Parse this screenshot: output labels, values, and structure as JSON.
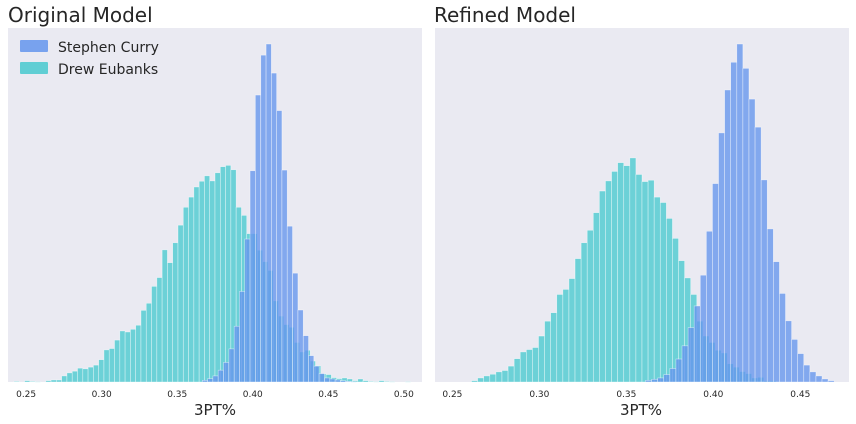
{
  "colors": {
    "background": "#EAEAF2",
    "curry": "#6495ED",
    "eubanks": "#48C9CF"
  },
  "legend": {
    "placement": "top-left",
    "entries": [
      "Stephen Curry",
      "Drew Eubanks"
    ]
  },
  "chart_data": [
    {
      "type": "bar",
      "title": "Original Model",
      "xlabel": "3PT%",
      "ylabel": "",
      "xlim": [
        0.238,
        0.512
      ],
      "ylim": [
        0,
        1
      ],
      "xticks": [
        0.25,
        0.3,
        0.35,
        0.4,
        0.45,
        0.5
      ],
      "xtick_labels": [
        "0.25",
        "0.30",
        "0.35",
        "0.40",
        "0.45",
        "0.50"
      ],
      "y_axis_visible": false,
      "grid": false,
      "series": [
        {
          "name": "Stephen Curry",
          "x": [
            0.3666,
            0.3701,
            0.3736,
            0.3771,
            0.3806,
            0.3842,
            0.3877,
            0.3912,
            0.3947,
            0.3982,
            0.4017,
            0.4053,
            0.4088,
            0.4123,
            0.4158,
            0.4193,
            0.4228,
            0.4264,
            0.4299,
            0.4334,
            0.4369,
            0.4404,
            0.4439,
            0.4475,
            0.451,
            0.4545,
            0.458,
            0.4615,
            0.465
          ],
          "values": [
            0.005,
            0.01,
            0.018,
            0.035,
            0.058,
            0.098,
            0.165,
            0.268,
            0.423,
            0.625,
            0.849,
            0.967,
            1.0,
            0.914,
            0.803,
            0.627,
            0.461,
            0.322,
            0.213,
            0.137,
            0.078,
            0.047,
            0.025,
            0.012,
            0.009,
            0.006,
            0.004,
            0.002,
            0.001
          ]
        },
        {
          "name": "Drew Eubanks",
          "x": [
            0.242,
            0.2455,
            0.249,
            0.2525,
            0.256,
            0.2595,
            0.263,
            0.2665,
            0.27,
            0.2735,
            0.277,
            0.2805,
            0.284,
            0.2875,
            0.291,
            0.2945,
            0.298,
            0.3015,
            0.305,
            0.3085,
            0.312,
            0.3155,
            0.319,
            0.3225,
            0.326,
            0.3295,
            0.333,
            0.3365,
            0.34,
            0.3435,
            0.347,
            0.3505,
            0.354,
            0.3575,
            0.361,
            0.3645,
            0.368,
            0.3715,
            0.375,
            0.3785,
            0.382,
            0.3855,
            0.389,
            0.3925,
            0.396,
            0.3995,
            0.403,
            0.4065,
            0.41,
            0.4135,
            0.417,
            0.4205,
            0.424,
            0.4275,
            0.431,
            0.4345,
            0.438,
            0.4415,
            0.445,
            0.4485,
            0.452,
            0.4555,
            0.459,
            0.4625,
            0.466,
            0.4695,
            0.473,
            0.4765,
            0.48,
            0.4835,
            0.487,
            0.4905,
            0.494,
            0.4975,
            0.501
          ],
          "values": [
            0.002,
            0.0,
            0.004,
            0.002,
            0.001,
            0.0,
            0.004,
            0.006,
            0.006,
            0.018,
            0.027,
            0.032,
            0.041,
            0.039,
            0.044,
            0.05,
            0.066,
            0.095,
            0.099,
            0.124,
            0.151,
            0.148,
            0.156,
            0.168,
            0.212,
            0.233,
            0.283,
            0.309,
            0.391,
            0.353,
            0.412,
            0.464,
            0.517,
            0.547,
            0.577,
            0.594,
            0.61,
            0.595,
            0.619,
            0.637,
            0.641,
            0.628,
            0.517,
            0.493,
            0.439,
            0.439,
            0.39,
            0.356,
            0.33,
            0.24,
            0.195,
            0.17,
            0.162,
            0.117,
            0.089,
            0.094,
            0.062,
            0.048,
            0.024,
            0.022,
            0.013,
            0.01,
            0.012,
            0.009,
            0.004,
            0.009,
            0.004,
            0.002,
            0.001,
            0.004,
            0.002,
            0.001,
            0.0,
            0.0,
            0.001
          ]
        }
      ]
    },
    {
      "type": "bar",
      "title": "Refined Model",
      "xlabel": "3PT%",
      "ylabel": "",
      "xlim": [
        0.24,
        0.478
      ],
      "ylim": [
        0,
        1
      ],
      "xticks": [
        0.25,
        0.3,
        0.35,
        0.4,
        0.45
      ],
      "xtick_labels": [
        "0.25",
        "0.30",
        "0.35",
        "0.40",
        "0.45"
      ],
      "y_axis_visible": false,
      "grid": false,
      "series": [
        {
          "name": "Stephen Curry",
          "x": [
            0.361,
            0.3645,
            0.368,
            0.3715,
            0.375,
            0.3785,
            0.382,
            0.3855,
            0.389,
            0.3925,
            0.396,
            0.3995,
            0.403,
            0.4065,
            0.41,
            0.4135,
            0.417,
            0.4205,
            0.424,
            0.4275,
            0.431,
            0.4345,
            0.438,
            0.4415,
            0.445,
            0.4485,
            0.452,
            0.4555,
            0.459,
            0.4625,
            0.466
          ],
          "values": [
            0.005,
            0.008,
            0.012,
            0.022,
            0.04,
            0.068,
            0.107,
            0.161,
            0.225,
            0.316,
            0.446,
            0.587,
            0.737,
            0.864,
            0.946,
            1.0,
            0.928,
            0.837,
            0.754,
            0.598,
            0.453,
            0.356,
            0.262,
            0.181,
            0.126,
            0.084,
            0.05,
            0.03,
            0.018,
            0.009,
            0.004
          ]
        },
        {
          "name": "Drew Eubanks",
          "x": [
            0.261,
            0.2645,
            0.268,
            0.2715,
            0.275,
            0.2785,
            0.282,
            0.2855,
            0.289,
            0.2925,
            0.296,
            0.2995,
            0.303,
            0.3065,
            0.31,
            0.3135,
            0.317,
            0.3205,
            0.324,
            0.3275,
            0.331,
            0.3345,
            0.338,
            0.3415,
            0.345,
            0.3485,
            0.352,
            0.3555,
            0.359,
            0.3625,
            0.366,
            0.3695,
            0.373,
            0.3765,
            0.38,
            0.3835,
            0.387,
            0.3905,
            0.394,
            0.3975,
            0.401,
            0.4045,
            0.408,
            0.4115,
            0.415,
            0.4185,
            0.422,
            0.4255,
            0.429,
            0.4325
          ],
          "values": [
            0.004,
            0.012,
            0.018,
            0.023,
            0.03,
            0.034,
            0.047,
            0.069,
            0.089,
            0.096,
            0.102,
            0.136,
            0.18,
            0.205,
            0.259,
            0.274,
            0.306,
            0.365,
            0.412,
            0.449,
            0.501,
            0.565,
            0.595,
            0.623,
            0.649,
            0.64,
            0.663,
            0.614,
            0.593,
            0.597,
            0.547,
            0.531,
            0.484,
            0.425,
            0.359,
            0.308,
            0.259,
            0.18,
            0.136,
            0.117,
            0.094,
            0.086,
            0.054,
            0.044,
            0.031,
            0.025,
            0.012,
            0.014,
            0.004,
            0.004
          ]
        }
      ]
    }
  ]
}
